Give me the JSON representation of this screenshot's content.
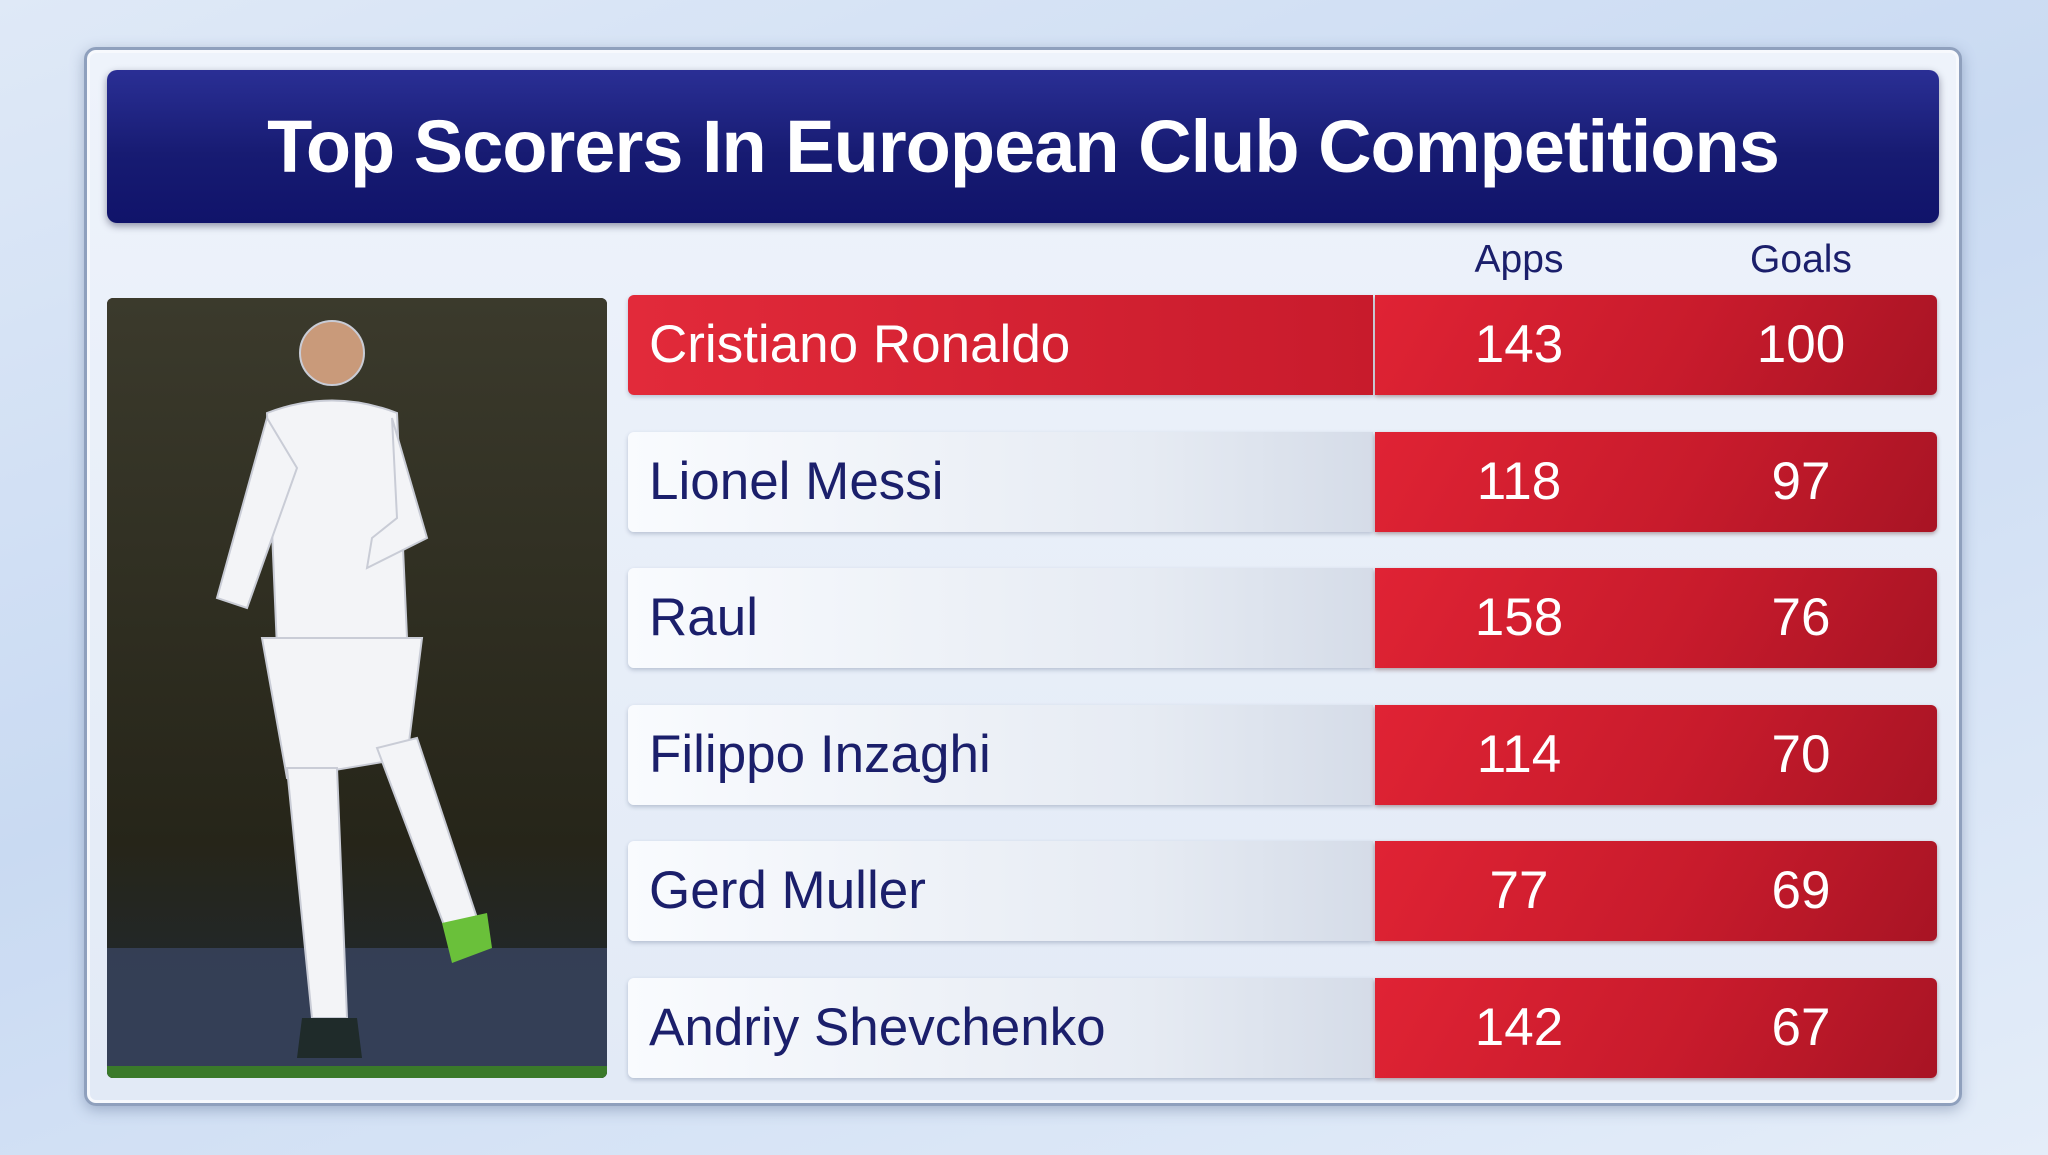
{
  "header": {
    "title": "Top Scorers In European Club Competitions"
  },
  "table": {
    "columns": [
      "Apps",
      "Goals"
    ],
    "rows": [
      [
        "Cristiano Ronaldo",
        "143",
        "100"
      ],
      [
        "Lionel Messi",
        "118",
        "97"
      ],
      [
        "Raul",
        "158",
        "76"
      ],
      [
        "Filippo Inzaghi",
        "114",
        "70"
      ],
      [
        "Gerd Muller",
        "77",
        "69"
      ],
      [
        "Andriy Shevchenko",
        "142",
        "67"
      ]
    ]
  }
}
